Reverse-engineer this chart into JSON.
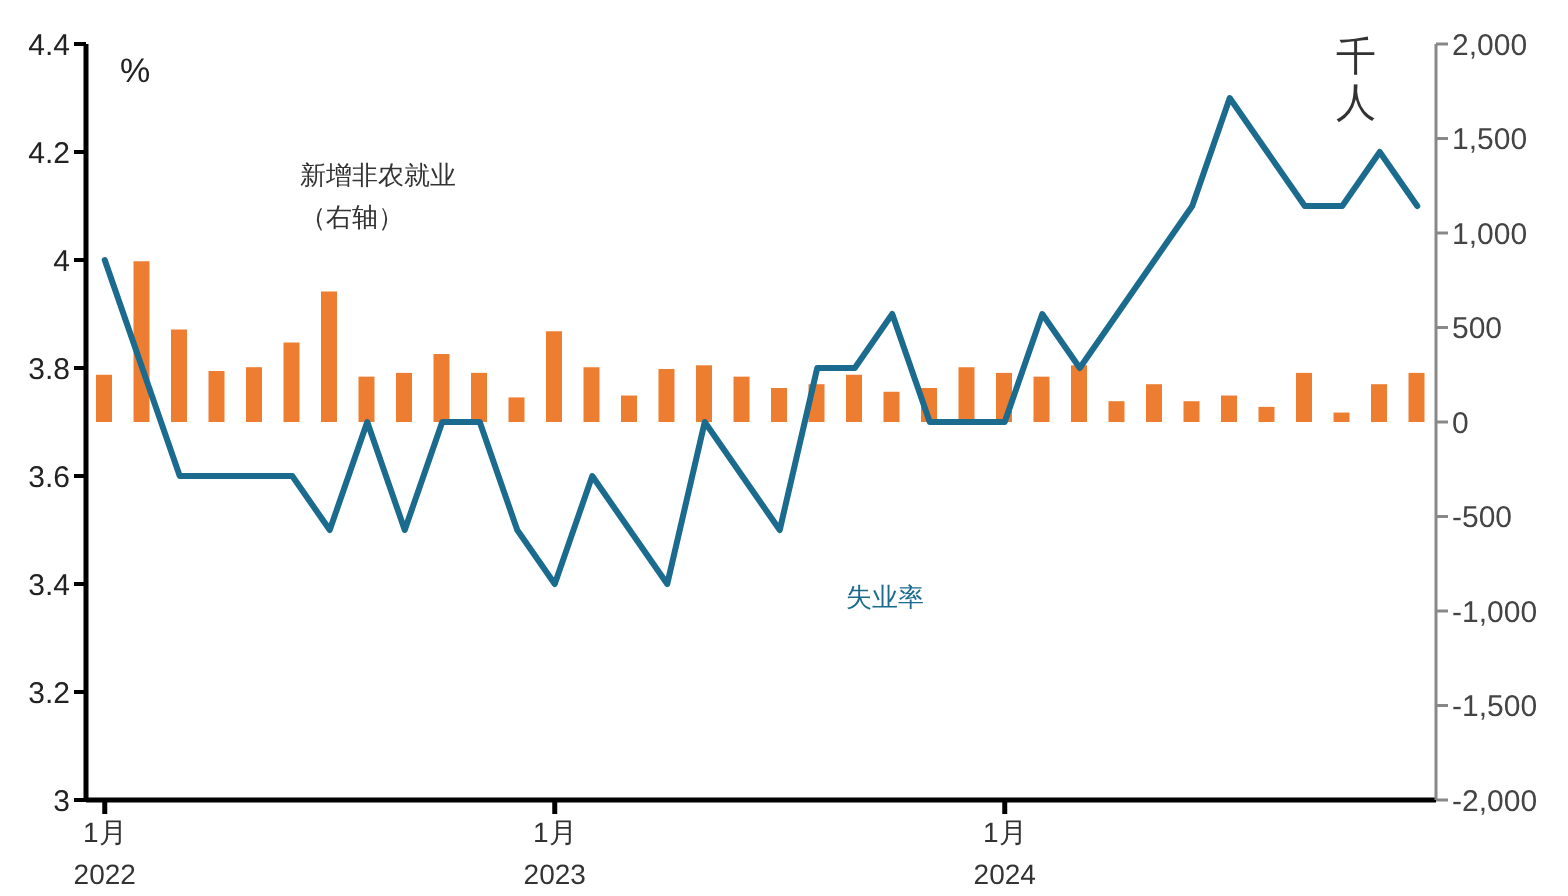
{
  "chart_data": {
    "type": "bar",
    "categories": [
      "1月\n2022",
      null,
      null,
      null,
      null,
      null,
      null,
      null,
      null,
      null,
      null,
      null,
      "1月\n2023",
      null,
      null,
      null,
      null,
      null,
      null,
      null,
      null,
      null,
      null,
      null,
      "1月\n2024",
      null,
      null,
      null,
      null,
      null,
      null,
      null,
      null,
      null,
      null,
      null
    ],
    "series": [
      {
        "name": "新增非农就业（右轴）",
        "axis": "y2",
        "color": "#ed7d31",
        "values": [
          250,
          850,
          490,
          270,
          290,
          420,
          690,
          240,
          260,
          360,
          260,
          130,
          480,
          290,
          140,
          280,
          300,
          240,
          180,
          200,
          250,
          160,
          180,
          290,
          260,
          240,
          300,
          110,
          200,
          110,
          140,
          80,
          260,
          50,
          200,
          260
        ]
      },
      {
        "name": "失业率",
        "type": "line",
        "axis": "y",
        "color": "#1b6b8e",
        "values": [
          4.0,
          3.8,
          3.6,
          3.6,
          3.6,
          3.6,
          3.5,
          3.7,
          3.5,
          3.7,
          3.7,
          3.5,
          3.4,
          3.6,
          3.5,
          3.4,
          3.7,
          3.6,
          3.5,
          3.8,
          3.8,
          3.9,
          3.7,
          3.7,
          3.7,
          3.9,
          3.8,
          3.9,
          4.0,
          4.1,
          4.3,
          4.2,
          4.1,
          4.1,
          4.2,
          4.1
        ]
      }
    ],
    "ylabel": "%",
    "y2label": "千人",
    "ylim": [
      3,
      4.4
    ],
    "yticks": [
      3,
      3.2,
      3.4,
      3.6,
      3.8,
      4,
      4.2,
      4.4
    ],
    "y2lim": [
      -2000,
      2000
    ],
    "y2ticks": [
      {
        "value": -2000,
        "label": "-2,000"
      },
      {
        "value": -1500,
        "label": "-1,500"
      },
      {
        "value": -1000,
        "label": "-1,000"
      },
      -500,
      0,
      500,
      {
        "value": 1000,
        "label": "1,000"
      },
      {
        "value": 1500,
        "label": "1,500"
      },
      {
        "value": 2000,
        "label": "2,000"
      }
    ]
  }
}
